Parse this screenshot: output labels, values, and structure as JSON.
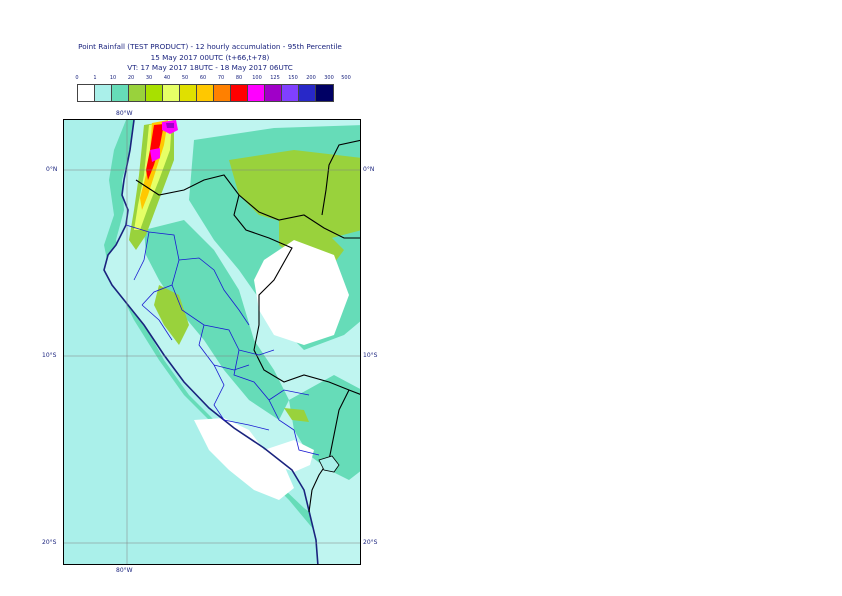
{
  "title": {
    "line1": "Point Rainfall (TEST PRODUCT) - 12 hourly accumulation - 95th Percentile",
    "line2": "15 May 2017 00UTC (t+66,t+78)",
    "line3": "VT: 17 May 2017 18UTC - 18 May 2017 06UTC"
  },
  "legend": {
    "ticks": [
      "0",
      "1",
      "10",
      "20",
      "30",
      "40",
      "50",
      "60",
      "70",
      "80",
      "100",
      "125",
      "150",
      "200",
      "300",
      "500"
    ],
    "colors": [
      "#ffffff",
      "#aaf0ea",
      "#66dcb8",
      "#99d23c",
      "#a8e000",
      "#e6ff66",
      "#e0e000",
      "#ffc800",
      "#ff8000",
      "#ff0000",
      "#ff00ff",
      "#a000c8",
      "#8040ff",
      "#2828c8",
      "#000064"
    ]
  },
  "axes": {
    "lon_top": "80°W",
    "lon_bottom": "80°W",
    "lat_0": "0°N",
    "lat_10": "10°S",
    "lat_20": "20°S"
  },
  "map": {
    "colors": {
      "ocean": "#aaf0ea",
      "light_land": "#bff5f0",
      "rain_10": "#66dcb8",
      "rain_20": "#99d23c",
      "rain_30": "#a8e000",
      "rain_40": "#e6ff66",
      "rain_50": "#e0e000",
      "rain_60": "#ffc800",
      "rain_80": "#ff0000",
      "rain_100": "#ff00ff",
      "rain_150": "#a000c8",
      "dry": "#ffffff",
      "coast": "#1a237e",
      "border": "#000000",
      "admin": "#1a1ad2",
      "grid": "#808080"
    }
  }
}
